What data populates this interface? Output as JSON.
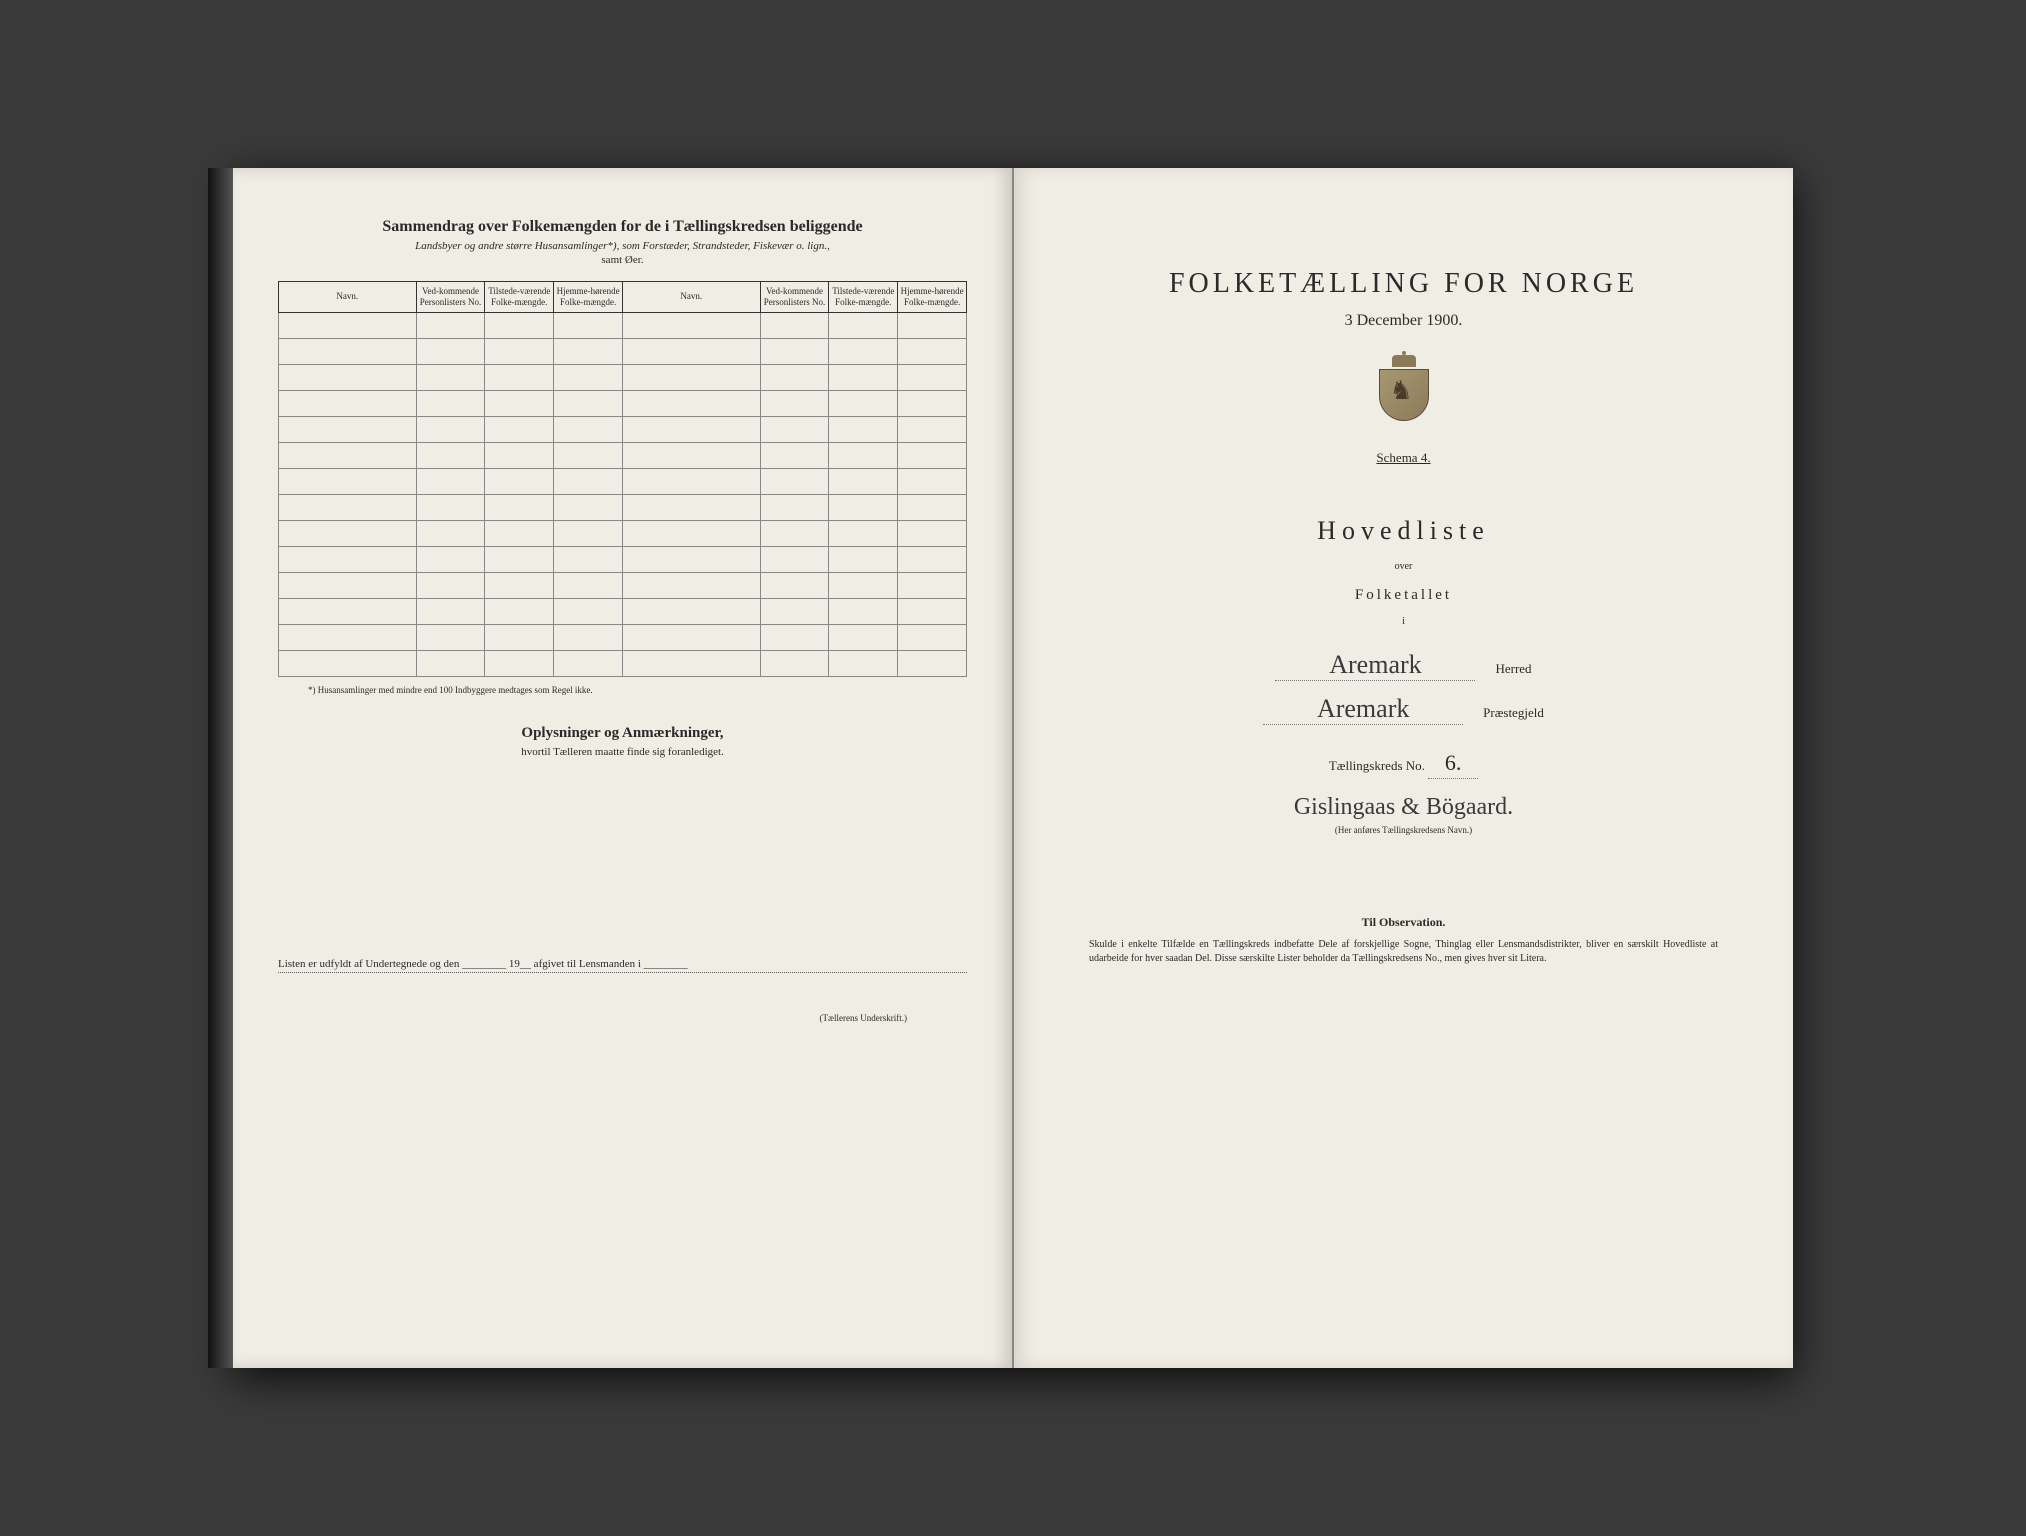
{
  "colors": {
    "page_bg": "#f0ede4",
    "text": "#2a2a2a",
    "border": "#333333",
    "grid": "#888888",
    "handwriting": "#3a3a3a",
    "outer_bg": "#3a3a3a"
  },
  "leftPage": {
    "title": "Sammendrag over Folkemængden for de i Tællingskredsen beliggende",
    "subtitle": "Landsbyer og andre større Husansamlinger*), som Forstæder, Strandsteder, Fiskevær o. lign.,",
    "subtitle2": "samt Øer.",
    "tableHeaders": {
      "navn": "Navn.",
      "vedkommende": "Ved-kommende Personlisters No.",
      "tilstede": "Tilstede-værende Folke-mængde.",
      "hjemme": "Hjemme-hørende Folke-mængde."
    },
    "rowCount": 14,
    "footnote": "*) Husansamlinger med mindre end 100 Indbyggere medtages som Regel ikke.",
    "sectionTitle": "Oplysninger og Anmærkninger,",
    "sectionSub": "hvortil Tælleren maatte finde sig foranlediget.",
    "signatureLine": "Listen er udfyldt af Undertegnede og den ________ 19__ afgivet til Lensmanden i ________",
    "signatureCaption": "(Tællerens Underskrift.)"
  },
  "rightPage": {
    "title": "FOLKETÆLLING FOR NORGE",
    "date": "3 December 1900.",
    "schema": "Schema 4.",
    "hovedliste": "Hovedliste",
    "over": "over",
    "folketallet": "Folketallet",
    "i": "i",
    "herred": {
      "value": "Aremark",
      "label": "Herred"
    },
    "praestegjeld": {
      "value": "Aremark",
      "label": "Præstegjeld"
    },
    "kredsLabel": "Tællingskreds No.",
    "kredsNo": "6.",
    "kredsName": "Gislingaas & Bögaard.",
    "kredsNameCaption": "(Her anføres Tællingskredsens Navn.)",
    "observationTitle": "Til Observation.",
    "observationText": "Skulde i enkelte Tilfælde en Tællingskreds indbefatte Dele af forskjellige Sogne, Thinglag eller Lensmandsdistrikter, bliver en særskilt Hovedliste at udarbeide for hver saadan Del. Disse særskilte Lister beholder da Tællingskredsens No., men gives hver sit Litera."
  }
}
